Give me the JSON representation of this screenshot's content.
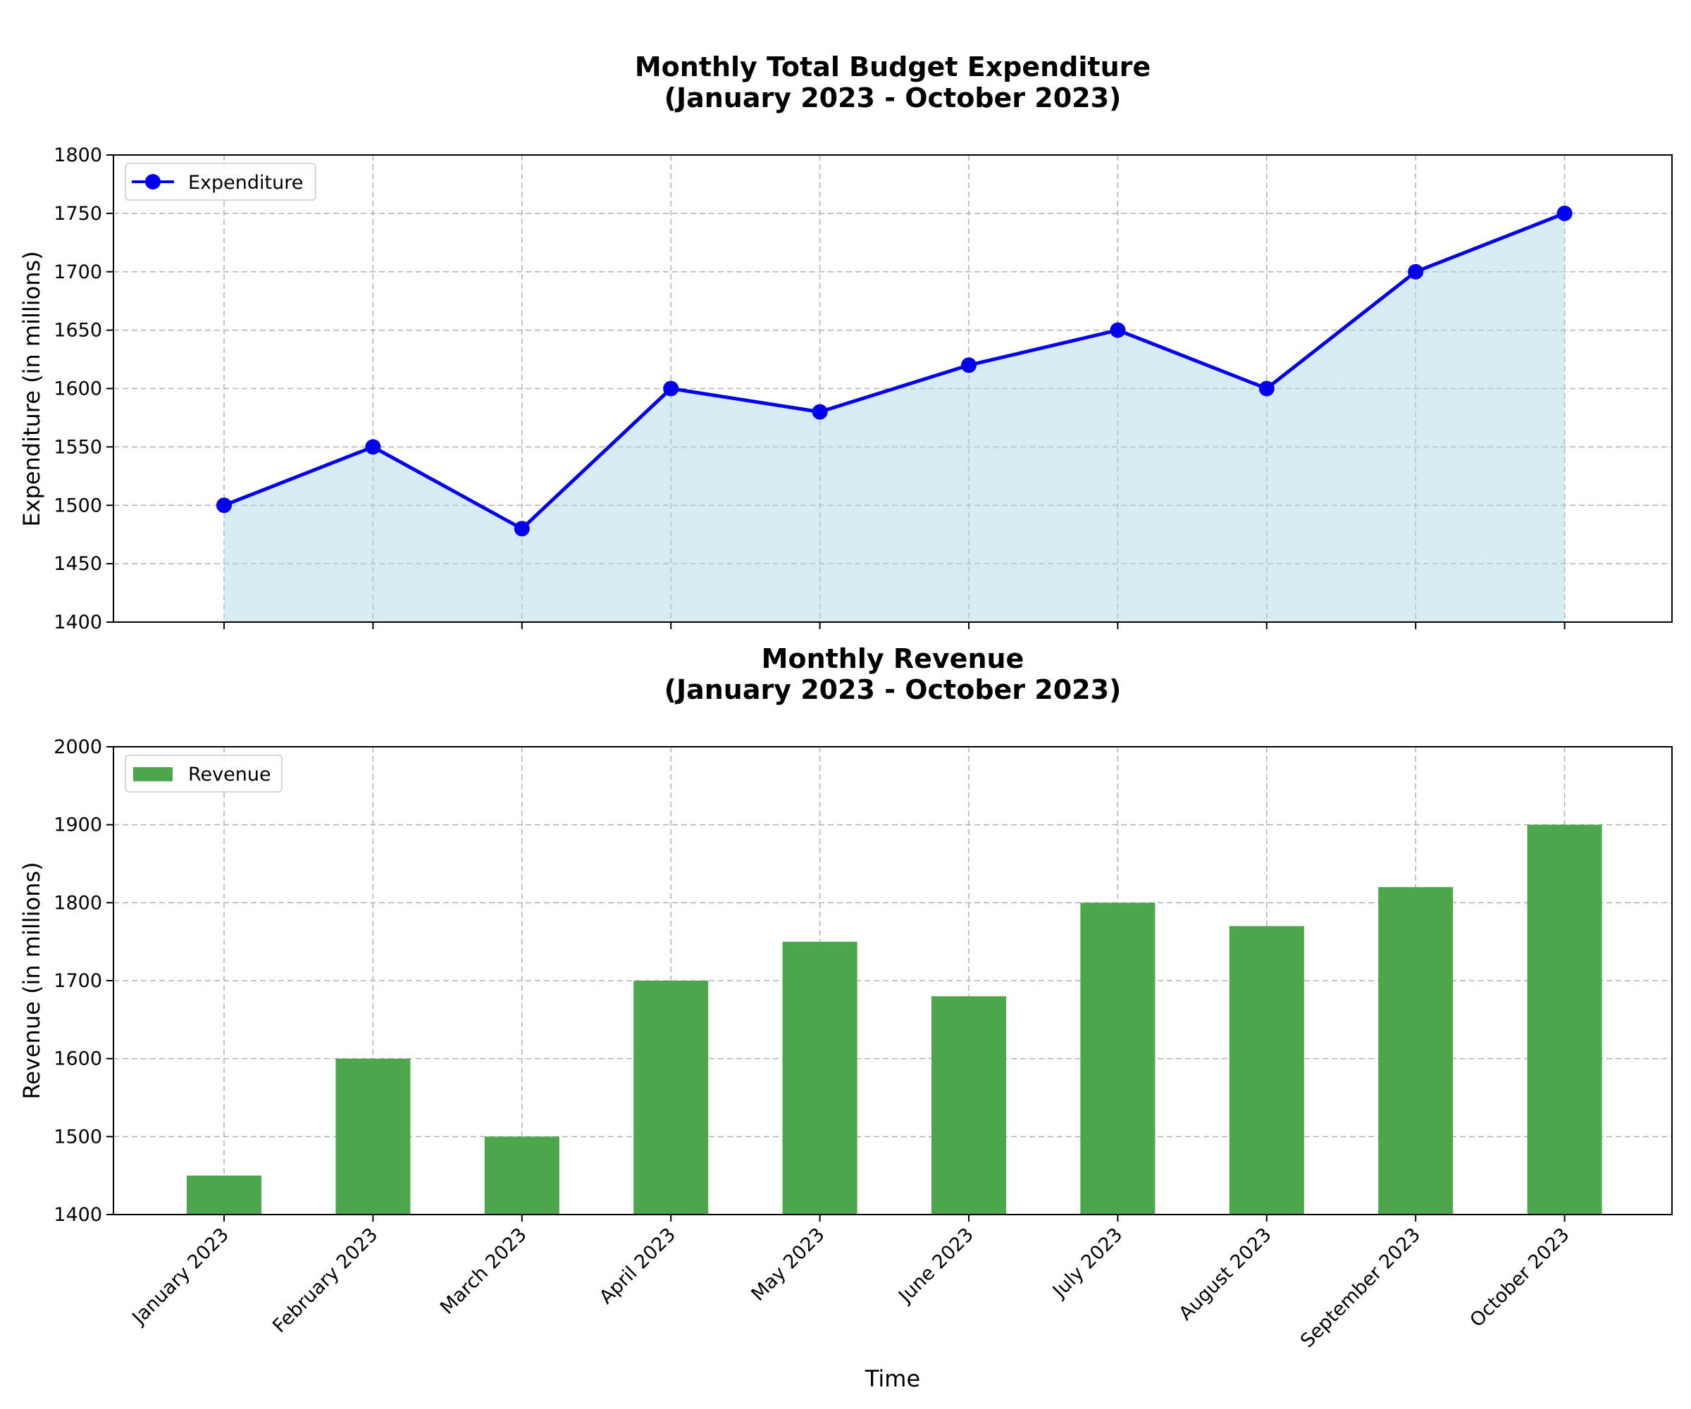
{
  "chart_data": [
    {
      "type": "line",
      "title_line1": "Monthly Total Budget Expenditure",
      "title_line2": "(January 2023 - October 2023)",
      "xlabel": "",
      "ylabel": "Expenditure (in millions)",
      "categories": [
        "January 2023",
        "February 2023",
        "March 2023",
        "April 2023",
        "May 2023",
        "June 2023",
        "July 2023",
        "August 2023",
        "September 2023",
        "October 2023"
      ],
      "series": [
        {
          "name": "Expenditure",
          "values": [
            1500,
            1550,
            1480,
            1600,
            1580,
            1620,
            1650,
            1600,
            1700,
            1750
          ]
        }
      ],
      "ylim": [
        1400,
        1800
      ],
      "yticks": [
        1400,
        1450,
        1500,
        1550,
        1600,
        1650,
        1700,
        1750,
        1800
      ],
      "area_fill": true,
      "grid": true,
      "legend_position": "top-left",
      "colors": {
        "line": "#0000ee",
        "fill": "#add8e6"
      }
    },
    {
      "type": "bar",
      "title_line1": "Monthly Revenue",
      "title_line2": "(January 2023 - October 2023)",
      "xlabel": "Time",
      "ylabel": "Revenue (in millions)",
      "categories": [
        "January 2023",
        "February 2023",
        "March 2023",
        "April 2023",
        "May 2023",
        "June 2023",
        "July 2023",
        "August 2023",
        "September 2023",
        "October 2023"
      ],
      "series": [
        {
          "name": "Revenue",
          "values": [
            1450,
            1600,
            1500,
            1700,
            1750,
            1680,
            1800,
            1770,
            1820,
            1900
          ]
        }
      ],
      "ylim": [
        1400,
        2000
      ],
      "yticks": [
        1400,
        1500,
        1600,
        1700,
        1800,
        1900,
        2000
      ],
      "grid": true,
      "legend_position": "top-left",
      "colors": {
        "bar": "#4ca64c"
      }
    }
  ]
}
